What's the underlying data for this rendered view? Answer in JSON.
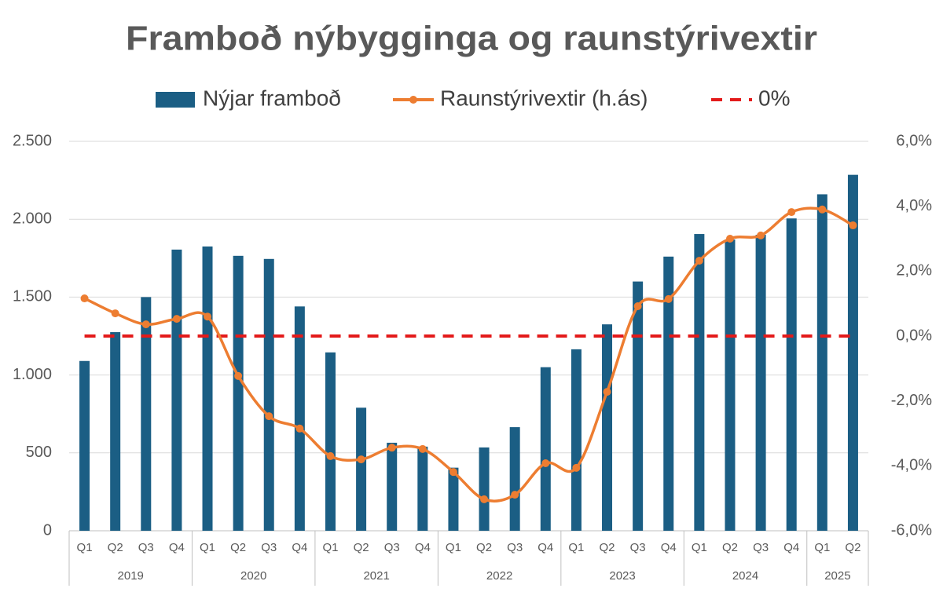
{
  "chart_data": {
    "type": "combo",
    "title": "Framboð nýbygginga og raunstýrivextir",
    "groups": [
      {
        "name": "2019",
        "categories": [
          "Q1",
          "Q2",
          "Q3",
          "Q4"
        ]
      },
      {
        "name": "2020",
        "categories": [
          "Q1",
          "Q2",
          "Q3",
          "Q4"
        ]
      },
      {
        "name": "2021",
        "categories": [
          "Q1",
          "Q2",
          "Q3",
          "Q4"
        ]
      },
      {
        "name": "2022",
        "categories": [
          "Q1",
          "Q2",
          "Q3",
          "Q4"
        ]
      },
      {
        "name": "2023",
        "categories": [
          "Q1",
          "Q2",
          "Q3",
          "Q4"
        ]
      },
      {
        "name": "2024",
        "categories": [
          "Q1",
          "Q2",
          "Q3",
          "Q4"
        ]
      },
      {
        "name": "2025",
        "categories": [
          "Q1",
          "Q2"
        ]
      }
    ],
    "series": [
      {
        "name": "Nýjar framboð",
        "type": "bar",
        "color": "#1b5e84",
        "values": [
          1090,
          1275,
          1500,
          1805,
          1825,
          1765,
          1745,
          1440,
          1145,
          790,
          565,
          540,
          405,
          535,
          665,
          1050,
          1165,
          1325,
          1600,
          1760,
          1905,
          1870,
          1900,
          2005,
          2160,
          2285
        ]
      },
      {
        "name": "Raunstýrivextir (h.ás)",
        "type": "line",
        "axis": "y2",
        "color": "#ed7d31",
        "marker": "circle",
        "smooth": true,
        "values": [
          1.16,
          0.7,
          0.36,
          0.53,
          0.6,
          -1.23,
          -2.47,
          -2.85,
          -3.7,
          -3.8,
          -3.44,
          -3.48,
          -4.19,
          -5.03,
          -4.89,
          -3.92,
          -4.06,
          -1.72,
          0.92,
          1.14,
          2.32,
          3.0,
          3.1,
          3.82,
          3.9,
          3.41
        ]
      },
      {
        "name": "0%",
        "type": "line",
        "axis": "y2",
        "color": "#e31a1a",
        "dash": true,
        "values": [
          0,
          0,
          0,
          0,
          0,
          0,
          0,
          0,
          0,
          0,
          0,
          0,
          0,
          0,
          0,
          0,
          0,
          0,
          0,
          0,
          0,
          0,
          0,
          0,
          0,
          0
        ]
      }
    ],
    "ylim": [
      0,
      2500
    ],
    "yticks": [
      0,
      500,
      {
        "value": 1000,
        "label": "1.000"
      },
      {
        "value": 1500,
        "label": "1.500"
      },
      {
        "value": 2000,
        "label": "2.000"
      },
      {
        "value": 2500,
        "label": "2.500"
      }
    ],
    "y2lim": [
      -6,
      6
    ],
    "y2ticks": [
      {
        "value": -6,
        "label": "-6,0%"
      },
      {
        "value": -4,
        "label": "-4,0%"
      },
      {
        "value": -2,
        "label": "-2,0%"
      },
      {
        "value": 0,
        "label": "0,0%"
      },
      {
        "value": 2,
        "label": "2,0%"
      },
      {
        "value": 4,
        "label": "4,0%"
      },
      {
        "value": 6,
        "label": "6,0%"
      }
    ],
    "grid": true,
    "legend": "top"
  }
}
